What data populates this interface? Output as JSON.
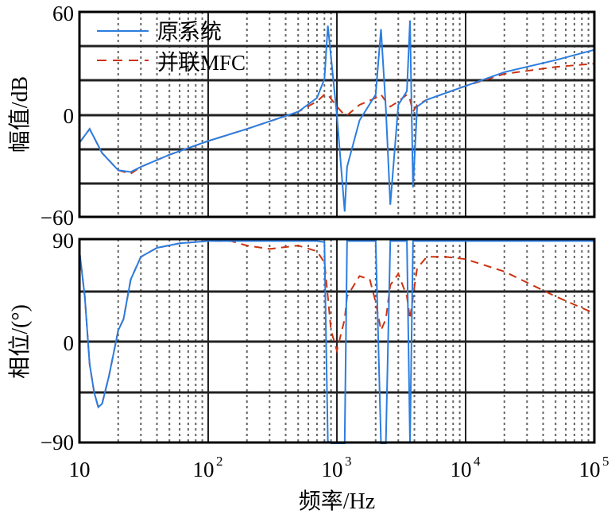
{
  "chart_data": [
    {
      "type": "line",
      "title": "",
      "panel": "magnitude",
      "xlabel": "频率/Hz",
      "ylabel": "幅值/dB",
      "xscale": "log",
      "xlim": [
        10,
        100000
      ],
      "ylim": [
        -60,
        60
      ],
      "yticks": [
        -60,
        0,
        60
      ],
      "ytick_labels": [
        "−60",
        "0",
        "60"
      ],
      "grid": true,
      "legend": {
        "position": "upper-left",
        "entries": [
          "原系统",
          "并联MFC"
        ]
      },
      "x": [
        10,
        12,
        15,
        20,
        25,
        30,
        50,
        100,
        200,
        500,
        700,
        800,
        850,
        1000,
        1150,
        1200,
        1500,
        2000,
        2200,
        2400,
        2600,
        3000,
        3500,
        3700,
        3900,
        4200,
        5000,
        10000,
        20000,
        50000,
        100000
      ],
      "series": [
        {
          "name": "原系统",
          "color": "#2b7de0",
          "style": "solid",
          "values": [
            -16,
            -8,
            -22,
            -32,
            -33,
            -30,
            -23,
            -15,
            -8,
            2,
            10,
            21,
            52,
            0,
            -56,
            -30,
            -3,
            12,
            50,
            4,
            -52,
            6,
            14,
            55,
            -42,
            5,
            9,
            17,
            25,
            32,
            38
          ]
        },
        {
          "name": "并联MFC",
          "color": "#cc3311",
          "style": "dashed",
          "values": [
            -16,
            -8,
            -22,
            -32,
            -34,
            -30,
            -23,
            -15,
            -8,
            2,
            8,
            12,
            12,
            5,
            0,
            0,
            6,
            10,
            12,
            8,
            5,
            8,
            12,
            9,
            2,
            6,
            9,
            17,
            24,
            28,
            30
          ]
        }
      ]
    },
    {
      "type": "line",
      "title": "",
      "panel": "phase",
      "xlabel": "频率/Hz",
      "ylabel": "相位/(°)",
      "xscale": "log",
      "xlim": [
        10,
        100000
      ],
      "ylim": [
        -90,
        90
      ],
      "yticks": [
        -90,
        0,
        90
      ],
      "ytick_labels": [
        "−90",
        "0",
        "90"
      ],
      "xticks": [
        10,
        100,
        1000,
        10000,
        100000
      ],
      "xtick_labels": [
        "10",
        "10²",
        "10³",
        "10⁴",
        "10⁵"
      ],
      "grid": true,
      "x": [
        10,
        11,
        12,
        13,
        14,
        15,
        17,
        20,
        22,
        25,
        30,
        40,
        60,
        100,
        150,
        200,
        300,
        500,
        700,
        800,
        850,
        900,
        1000,
        1150,
        1200,
        1500,
        1800,
        2000,
        2200,
        2400,
        2600,
        3000,
        3500,
        3700,
        3900,
        4200,
        5000,
        7000,
        10000,
        20000,
        50000,
        100000
      ],
      "series": [
        {
          "name": "原系统",
          "color": "#2b7de0",
          "style": "solid",
          "values": [
            80,
            40,
            -20,
            -45,
            -58,
            -55,
            -30,
            10,
            20,
            55,
            75,
            83,
            87,
            89,
            89,
            89,
            89,
            89,
            89,
            88,
            -88,
            -90,
            -90,
            -90,
            89,
            89,
            89,
            89,
            -90,
            -90,
            89,
            89,
            89,
            -90,
            89,
            89,
            89,
            89,
            89,
            89,
            89,
            89
          ]
        },
        {
          "name": "并联MFC",
          "color": "#cc3311",
          "style": "dashed",
          "values": [
            80,
            40,
            -20,
            -45,
            -58,
            -55,
            -30,
            10,
            20,
            55,
            75,
            83,
            87,
            89,
            89,
            85,
            82,
            85,
            80,
            70,
            40,
            10,
            -8,
            20,
            40,
            58,
            55,
            35,
            10,
            20,
            50,
            60,
            40,
            20,
            40,
            65,
            75,
            75,
            73,
            62,
            40,
            25
          ]
        }
      ]
    }
  ],
  "labels": {
    "mag_ylabel": "幅值/dB",
    "phase_ylabel": "相位/(°)",
    "xlabel": "频率/Hz",
    "legend_original": "原系统",
    "legend_mfc": "并联MFC",
    "mag_tick_60": "60",
    "mag_tick_0": "0",
    "mag_tick_m60": "−60",
    "ph_tick_90": "90",
    "ph_tick_0": "0",
    "ph_tick_m90": "−90",
    "x_10": "10",
    "x_base": "10",
    "x_e2": "2",
    "x_e3": "3",
    "x_e4": "4",
    "x_e5": "5"
  }
}
